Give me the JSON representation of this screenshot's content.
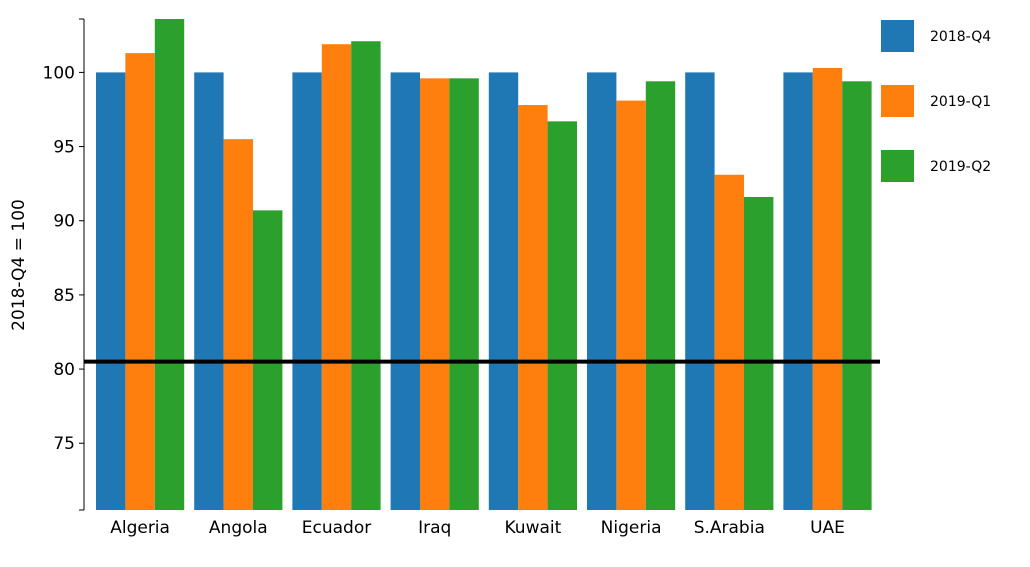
{
  "chart_data": {
    "type": "bar",
    "categories": [
      "Algeria",
      "Angola",
      "Ecuador",
      "Iraq",
      "Kuwait",
      "Nigeria",
      "S.Arabia",
      "UAE"
    ],
    "series": [
      {
        "name": "2018-Q4",
        "color": "#1f77b4",
        "values": [
          100,
          100,
          100,
          100,
          100,
          100,
          100,
          100
        ]
      },
      {
        "name": "2019-Q1",
        "color": "#ff7f0e",
        "values": [
          101.3,
          95.5,
          101.9,
          99.6,
          97.8,
          98.1,
          93.1,
          100.3
        ]
      },
      {
        "name": "2019-Q2",
        "color": "#2ca02c",
        "values": [
          103.6,
          90.7,
          102.1,
          99.6,
          96.7,
          99.4,
          91.6,
          99.4
        ]
      }
    ],
    "ylabel": "2018-Q4 = 100",
    "xlabel": "",
    "ylim": [
      70.5,
      103.6
    ],
    "yticks": [
      75,
      80,
      85,
      90,
      95,
      100
    ],
    "reference_line": {
      "value": 80.5,
      "color": "#000000"
    },
    "grid": false,
    "legend_position": "right"
  }
}
